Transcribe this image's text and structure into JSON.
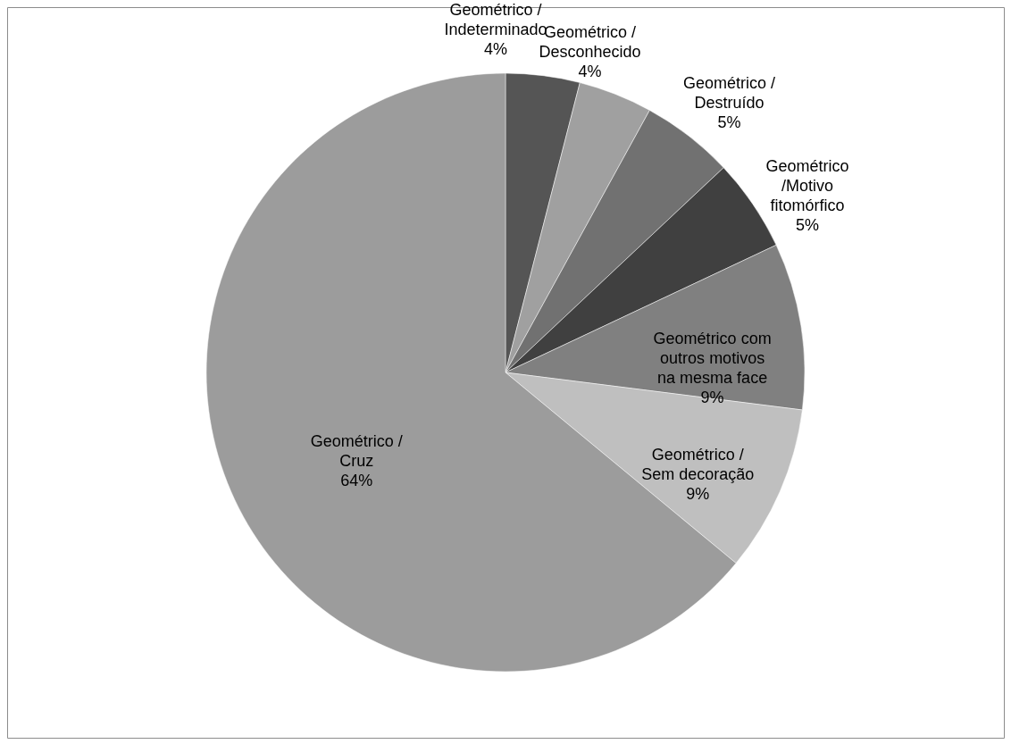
{
  "chart_data": {
    "type": "pie",
    "categories": [
      "Geométrico / Indeterminado",
      "Geométrico / Desconhecido",
      "Geométrico / Destruído",
      "Geométrico /Motivo fitomórfico",
      "Geométrico com outros motivos na mesma face",
      "Geométrico / Sem decoração",
      "Geométrico / Cruz"
    ],
    "values": [
      4,
      4,
      5,
      5,
      9,
      9,
      64
    ],
    "value_labels": [
      "4%",
      "4%",
      "5%",
      "5%",
      "9%",
      "9%",
      "64%"
    ],
    "colors": [
      "#555555",
      "#a0a0a0",
      "#717171",
      "#404040",
      "#808080",
      "#bfbfbf",
      "#9c9c9c"
    ]
  }
}
